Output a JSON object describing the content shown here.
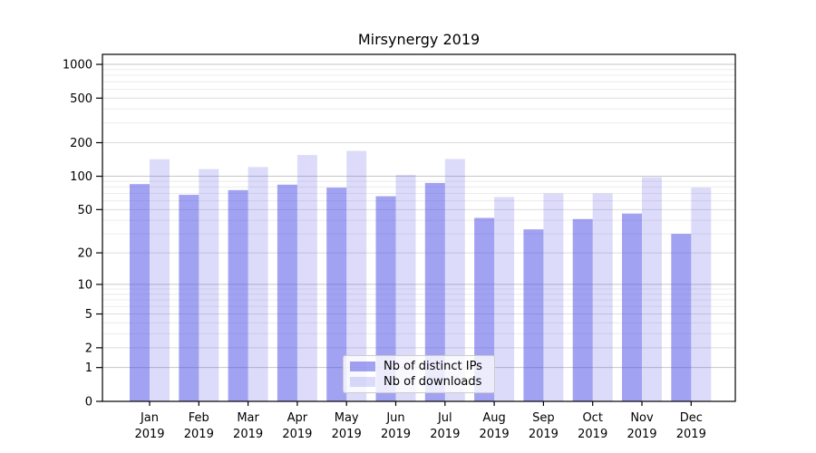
{
  "figure": {
    "background": "#ffffff",
    "text_color": "#000000"
  },
  "chart_data": {
    "type": "bar",
    "title": "Mirsynergy 2019",
    "months": [
      "Jan",
      "Feb",
      "Mar",
      "Apr",
      "May",
      "Jun",
      "Jul",
      "Aug",
      "Sep",
      "Oct",
      "Nov",
      "Dec"
    ],
    "year": "2019",
    "series": [
      {
        "name": "Nb of distinct IPs",
        "color": "rgba(80,80,230,0.53)",
        "values": [
          85,
          68,
          75,
          84,
          79,
          66,
          87,
          42,
          33,
          41,
          46,
          30
        ]
      },
      {
        "name": "Nb of downloads",
        "color": "rgba(80,80,230,0.20)",
        "values": [
          142,
          116,
          121,
          155,
          169,
          103,
          143,
          65,
          70,
          70,
          98,
          79
        ]
      }
    ],
    "xlabel": "",
    "ylabel": "",
    "yscale": "log1p",
    "yticks": [
      0,
      1,
      2,
      5,
      10,
      20,
      50,
      100,
      200,
      500,
      1000
    ],
    "yticks_minor": [
      3,
      4,
      6,
      7,
      8,
      9,
      30,
      40,
      60,
      70,
      80,
      90,
      300,
      400,
      600,
      700,
      800,
      900
    ],
    "ylim": [
      0,
      1228
    ],
    "grid": true,
    "legend_position": "lower-center",
    "colors": {
      "grid_decade": "#c6c6c6",
      "grid_major": "#dcdcdc",
      "grid_minor": "#ececec",
      "spine": "#000000",
      "tick_label": "#000000"
    }
  }
}
